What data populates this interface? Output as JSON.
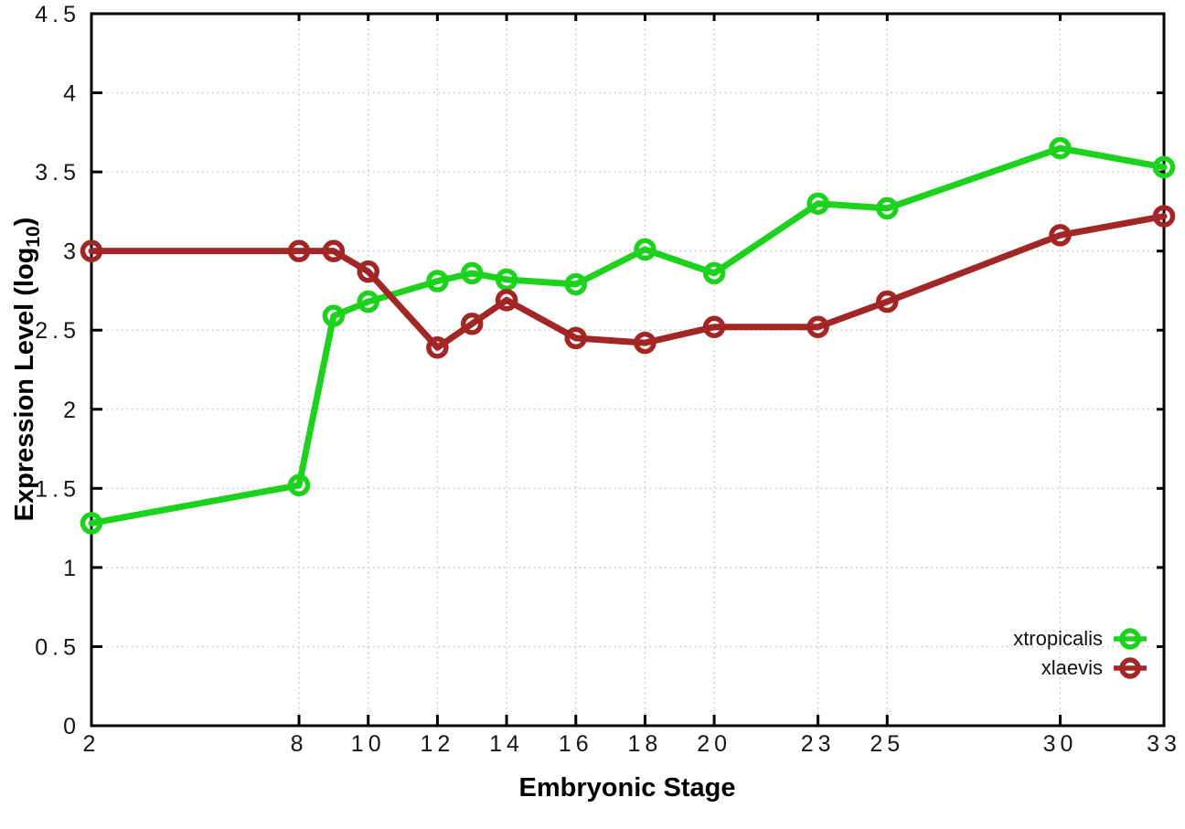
{
  "chart_data": {
    "type": "line",
    "title": "",
    "xlabel": "Embryonic Stage",
    "ylabel": "Expression Level (log10)",
    "ylabel_parts": {
      "prefix": "Expression Level (log",
      "sub": "10",
      "suffix": ")"
    },
    "xlim": [
      2,
      33
    ],
    "ylim": [
      0,
      4.5
    ],
    "grid": true,
    "legend_position": "bottom-right",
    "x_tick_values": [
      2,
      8,
      10,
      12,
      14,
      16,
      18,
      20,
      23,
      25,
      30,
      33
    ],
    "x_tick_labels": [
      "2",
      "8",
      "10",
      "12",
      "14",
      "16",
      "18",
      "20",
      "23",
      "25",
      "30",
      "33"
    ],
    "y_tick_values": [
      0,
      0.5,
      1,
      1.5,
      2,
      2.5,
      3,
      3.5,
      4,
      4.5
    ],
    "y_tick_labels": [
      "0",
      "0.5",
      "1",
      "1.5",
      "2",
      "2.5",
      "3",
      "3.5",
      "4",
      "4.5"
    ],
    "x": [
      2,
      8,
      9,
      10,
      12,
      13,
      14,
      16,
      18,
      20,
      23,
      25,
      30,
      33
    ],
    "series": [
      {
        "name": "xtropicalis",
        "color": "#1cd21c",
        "values": [
          1.28,
          1.52,
          2.59,
          2.68,
          2.81,
          2.86,
          2.82,
          2.79,
          3.01,
          2.86,
          3.3,
          3.27,
          3.65,
          3.53
        ]
      },
      {
        "name": "xlaevis",
        "color": "#a32626",
        "values": [
          3.0,
          3.0,
          3.0,
          2.87,
          2.39,
          2.54,
          2.69,
          2.45,
          2.42,
          2.52,
          2.52,
          2.68,
          3.1,
          3.22
        ]
      }
    ],
    "colors": {
      "grid": "#c4c4c4",
      "border": "#000000",
      "tick_label": "#161616"
    }
  }
}
